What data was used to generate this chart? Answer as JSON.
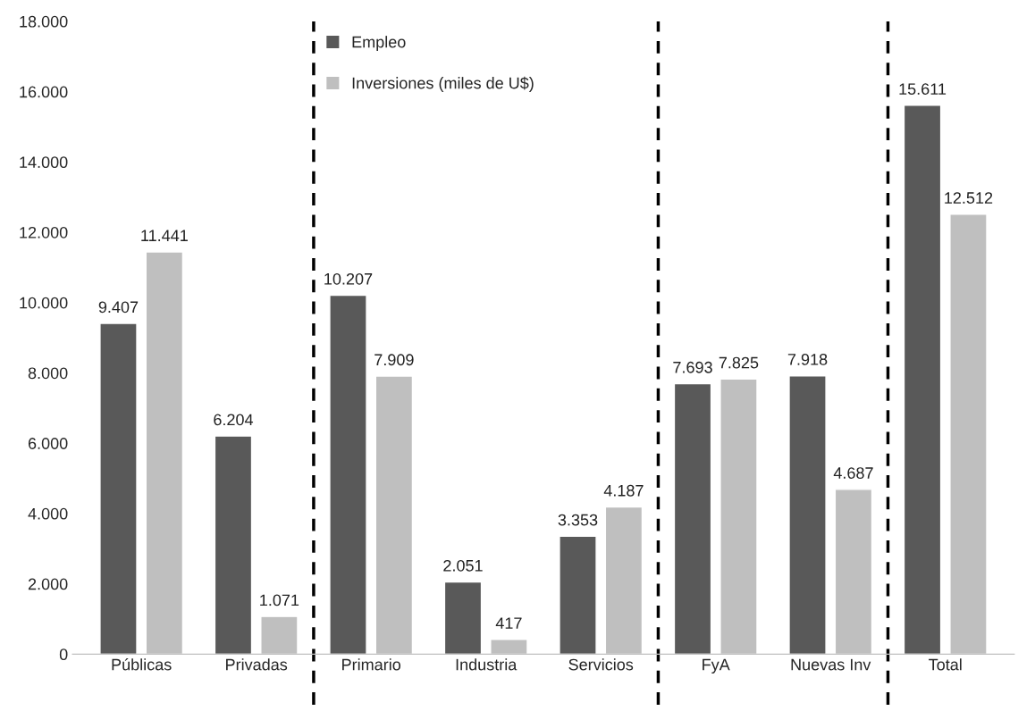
{
  "chart_data": {
    "type": "bar",
    "categories": [
      "Públicas",
      "Privadas",
      "Primario",
      "Industria",
      "Servicios",
      "FyA",
      "Nuevas Inv",
      "Total"
    ],
    "series": [
      {
        "name": "Empleo",
        "color": "#595959",
        "values": [
          9407,
          6204,
          10207,
          2051,
          3353,
          7693,
          7918,
          15611
        ],
        "value_labels": [
          "9.407",
          "6.204",
          "10.207",
          "2.051",
          "3.353",
          "7.693",
          "7.918",
          "15.611"
        ]
      },
      {
        "name": "Inversiones (miles de U$)",
        "color": "#bfbfbf",
        "values": [
          11441,
          1071,
          7909,
          417,
          4187,
          7825,
          4687,
          12512
        ],
        "value_labels": [
          "11.441",
          "1.071",
          "7.909",
          "417",
          "4.187",
          "7.825",
          "4.687",
          "12.512"
        ]
      }
    ],
    "ylim": [
      0,
      18000
    ],
    "yticks": [
      0,
      {
        "value": 2000,
        "label": "2.000"
      },
      {
        "value": 4000,
        "label": "4.000"
      },
      {
        "value": 6000,
        "label": "6.000"
      },
      {
        "value": 8000,
        "label": "8.000"
      },
      {
        "value": 10000,
        "label": "10.000"
      },
      {
        "value": 12000,
        "label": "12.000"
      },
      {
        "value": 14000,
        "label": "14.000"
      },
      {
        "value": 16000,
        "label": "16.000"
      },
      {
        "value": 18000,
        "label": "18.000"
      }
    ],
    "grid": false,
    "legend": "top"
  }
}
